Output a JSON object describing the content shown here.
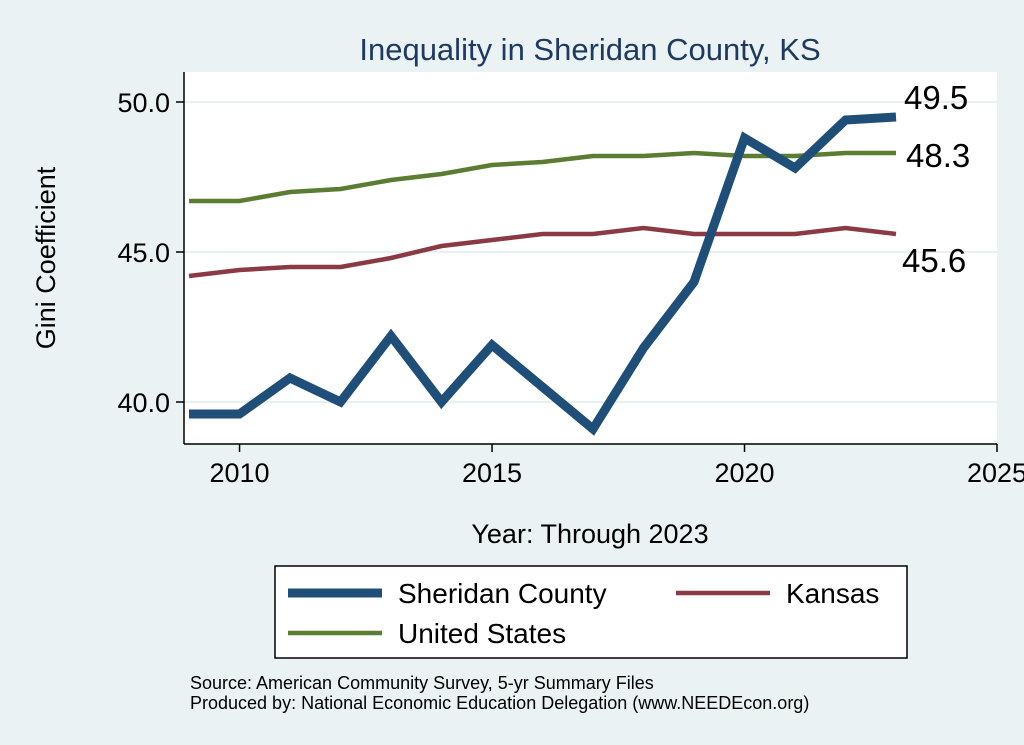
{
  "chart_data": {
    "type": "line",
    "title": "Inequality in Sheridan County, KS",
    "xlabel": "Year: Through 2023",
    "ylabel": "Gini Coefficient",
    "xlim": [
      2008.9,
      2025
    ],
    "ylim": [
      38.6,
      51.0
    ],
    "x_ticks": [
      2010,
      2015,
      2020,
      2025
    ],
    "y_ticks": [
      {
        "value": 40.0,
        "label": "40.0"
      },
      {
        "value": 45.0,
        "label": "45.0"
      },
      {
        "value": 50.0,
        "label": "50.0"
      }
    ],
    "grid": "horizontal",
    "legend_position": "bottom",
    "x": [
      2009,
      2010,
      2011,
      2012,
      2013,
      2014,
      2015,
      2016,
      2017,
      2018,
      2019,
      2020,
      2021,
      2022,
      2023
    ],
    "series": [
      {
        "name": "Sheridan County",
        "color": "#1f4e79",
        "values": [
          39.6,
          39.6,
          40.8,
          40.0,
          42.2,
          40.0,
          41.9,
          40.5,
          39.1,
          41.8,
          44.0,
          48.8,
          47.8,
          49.4,
          49.5
        ],
        "end_label": "49.5"
      },
      {
        "name": "Kansas",
        "color": "#8b3a44",
        "values": [
          44.2,
          44.4,
          44.5,
          44.5,
          44.8,
          45.2,
          45.4,
          45.6,
          45.6,
          45.8,
          45.6,
          45.6,
          45.6,
          45.8,
          45.6
        ],
        "end_label": "45.6"
      },
      {
        "name": "United States",
        "color": "#5a7d32",
        "values": [
          46.7,
          46.7,
          47.0,
          47.1,
          47.4,
          47.6,
          47.9,
          48.0,
          48.2,
          48.2,
          48.3,
          48.2,
          48.2,
          48.3,
          48.3
        ],
        "end_label": "48.3"
      }
    ]
  },
  "source_lines": [
    "Source: American Community Survey, 5-yr Summary Files",
    "Produced by: National Economic Education Delegation (www.NEEDEcon.org)"
  ]
}
